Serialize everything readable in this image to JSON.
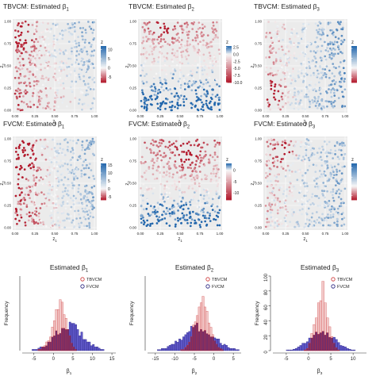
{
  "chart_data": [
    {
      "type": "scatter",
      "panel": "TBVCM-b1",
      "title_main": "TBVCM: Estimated ",
      "title_sym": "β",
      "title_sub": "1",
      "xlabel_main": "z",
      "xlabel_sub": "1",
      "ylabel_main": "z",
      "ylabel_sub": "2",
      "x_ticks": [
        "0.00",
        "0.25",
        "0.50",
        "0.75",
        "1.00"
      ],
      "y_ticks": [
        "0.00",
        "0.25",
        "0.50",
        "0.75",
        "1.00"
      ],
      "xlim": [
        0,
        1
      ],
      "ylim": [
        0,
        1
      ],
      "grid": true,
      "legend_title": "z",
      "legend_placement": "right",
      "colorbar_ticks": [
        {
          "label": "10",
          "value": 10
        },
        {
          "label": "5",
          "value": 5
        },
        {
          "label": "0",
          "value": 0
        },
        {
          "label": "-5",
          "value": -5
        }
      ],
      "color_range": [
        -8,
        12
      ],
      "colors": {
        "low": "#b2182b",
        "mid": "#f7f7f7",
        "high": "#2166ac"
      },
      "field": {
        "base": 0,
        "xcoef": 5,
        "ycoef": 2,
        "hot": [
          0.1,
          0.85,
          -8,
          0.12
        ],
        "noise": 5,
        "seed": 11
      }
    },
    {
      "type": "scatter",
      "panel": "TBVCM-b2",
      "title_main": "TBVCM: Estimated ",
      "title_sym": "β",
      "title_sub": "2",
      "xlabel_main": "z",
      "xlabel_sub": "1",
      "ylabel_main": "z",
      "ylabel_sub": "2",
      "x_ticks": [
        "0.00",
        "0.25",
        "0.50",
        "0.75",
        "1.00"
      ],
      "y_ticks": [
        "0.00",
        "0.25",
        "0.50",
        "0.75",
        "1.00"
      ],
      "xlim": [
        0,
        1
      ],
      "ylim": [
        0,
        1
      ],
      "grid": true,
      "legend_title": "z",
      "legend_placement": "right",
      "colorbar_ticks": [
        {
          "label": "2.5",
          "value": 2.5
        },
        {
          "label": "0.0",
          "value": 0
        },
        {
          "label": "-2.5",
          "value": -2.5
        },
        {
          "label": "-5.0",
          "value": -5
        },
        {
          "label": "-7.5",
          "value": -7.5
        },
        {
          "label": "-10.0",
          "value": -10
        }
      ],
      "color_range": [
        -10,
        3
      ],
      "colors": {
        "low": "#b2182b",
        "mid": "#f7f7f7",
        "high": "#2166ac"
      },
      "field": {
        "base": -0.5,
        "xcoef": 0,
        "ycoef": -5,
        "hot": [
          0.3,
          0.9,
          -6,
          0.1
        ],
        "noise": 3,
        "seed": 23
      }
    },
    {
      "type": "scatter",
      "panel": "TBVCM-b3",
      "title_main": "TBVCM: Estimated ",
      "title_sym": "β",
      "title_sub": "3",
      "xlabel_main": "z",
      "xlabel_sub": "1",
      "ylabel_main": "z",
      "ylabel_sub": "2",
      "x_ticks": [
        "0.00",
        "0.25",
        "0.50",
        "0.75",
        "1.00"
      ],
      "y_ticks": [
        "0.00",
        "0.25",
        "0.50",
        "0.75",
        "1.00"
      ],
      "xlim": [
        0,
        1
      ],
      "ylim": [
        0,
        1
      ],
      "grid": true,
      "legend_title": "z",
      "legend_placement": "right",
      "colorbar_ticks": [
        {
          "label": "",
          "value": 8
        },
        {
          "label": "",
          "value": 4
        },
        {
          "label": "",
          "value": 0
        },
        {
          "label": "",
          "value": -4
        }
      ],
      "color_range": [
        -6,
        9
      ],
      "colors": {
        "low": "#b2182b",
        "mid": "#f7f7f7",
        "high": "#2166ac"
      },
      "field": {
        "base": 2,
        "xcoef": 4,
        "ycoef": 0,
        "hot": [
          0.1,
          0.2,
          -8,
          0.1
        ],
        "noise": 4,
        "seed": 37
      }
    },
    {
      "type": "scatter",
      "panel": "FVCM-b1",
      "title_main": "FVCM: Estimated ",
      "title_sym": "β",
      "title_sub": "1",
      "xlabel_main": "z",
      "xlabel_sub": "1",
      "ylabel_main": "z",
      "ylabel_sub": "2",
      "x_ticks": [
        "0.00",
        "0.25",
        "0.50",
        "0.75",
        "1.00"
      ],
      "y_ticks": [
        "0.00",
        "0.25",
        "0.50",
        "0.75",
        "1.00"
      ],
      "xlim": [
        0,
        1
      ],
      "ylim": [
        0,
        1
      ],
      "grid": true,
      "legend_title": "z",
      "legend_placement": "right",
      "colorbar_ticks": [
        {
          "label": "15",
          "value": 15
        },
        {
          "label": "10",
          "value": 10
        },
        {
          "label": "5",
          "value": 5
        },
        {
          "label": "0",
          "value": 0
        },
        {
          "label": "-5",
          "value": -5
        }
      ],
      "color_range": [
        -7,
        16
      ],
      "colors": {
        "low": "#b2182b",
        "mid": "#f7f7f7",
        "high": "#2166ac"
      },
      "field": {
        "base": 1,
        "xcoef": 7,
        "ycoef": 1,
        "hot": [
          0.1,
          0.8,
          -9,
          0.12
        ],
        "noise": 6,
        "seed": 41
      }
    },
    {
      "type": "scatter",
      "panel": "FVCM-b2",
      "title_main": "FVCM: Estimated ",
      "title_sym": "β",
      "title_sub": "2",
      "xlabel_main": "z",
      "xlabel_sub": "1",
      "ylabel_main": "z",
      "ylabel_sub": "2",
      "x_ticks": [
        "0.00",
        "0.25",
        "0.50",
        "0.75",
        "1.00"
      ],
      "y_ticks": [
        "0.00",
        "0.25",
        "0.50",
        "0.75",
        "1.00"
      ],
      "xlim": [
        0,
        1
      ],
      "ylim": [
        0,
        1
      ],
      "grid": true,
      "legend_title": "z",
      "legend_placement": "right",
      "colorbar_ticks": [
        {
          "label": "0",
          "value": 0
        },
        {
          "label": "-5",
          "value": -5
        },
        {
          "label": "-10",
          "value": -10
        }
      ],
      "color_range": [
        -13,
        3
      ],
      "colors": {
        "low": "#b2182b",
        "mid": "#f7f7f7",
        "high": "#2166ac"
      },
      "field": {
        "base": -2,
        "xcoef": 0,
        "ycoef": -7,
        "hot": [
          0.6,
          0.8,
          -8,
          0.12
        ],
        "noise": 4,
        "seed": 53
      }
    },
    {
      "type": "scatter",
      "panel": "FVCM-b3",
      "title_main": "FVCM: Estimated ",
      "title_sym": "β",
      "title_sub": "3",
      "xlabel_main": "z",
      "xlabel_sub": "1",
      "ylabel_main": "z",
      "ylabel_sub": "2",
      "x_ticks": [
        "0.00",
        "0.25",
        "0.50",
        "0.75",
        "1.00"
      ],
      "y_ticks": [
        "0.00",
        "0.25",
        "0.50",
        "0.75",
        "1.00"
      ],
      "xlim": [
        0,
        1
      ],
      "ylim": [
        0,
        1
      ],
      "grid": true,
      "legend_title": "z",
      "legend_placement": "right",
      "colorbar_ticks": [
        {
          "label": "",
          "value": 8
        },
        {
          "label": "",
          "value": 4
        },
        {
          "label": "",
          "value": 0
        },
        {
          "label": "",
          "value": -4
        }
      ],
      "color_range": [
        -6,
        10
      ],
      "colors": {
        "low": "#b2182b",
        "mid": "#f7f7f7",
        "high": "#2166ac"
      },
      "field": {
        "base": 2,
        "xcoef": 3,
        "ycoef": 0,
        "hot": [
          0.2,
          0.85,
          -9,
          0.1
        ],
        "noise": 5,
        "seed": 67
      }
    },
    {
      "type": "bar",
      "panel": "hist-b1",
      "title_main": "Estimated ",
      "title_sym": "β",
      "title_sub": "1",
      "xlabel_main": "β",
      "xlabel_sub": "1",
      "ylabel": "Frequency",
      "x_ticks": [
        {
          "label": "-5",
          "value": -5
        },
        {
          "label": "0",
          "value": 0
        },
        {
          "label": "5",
          "value": 5
        },
        {
          "label": "10",
          "value": 10
        },
        {
          "label": "15",
          "value": 15
        }
      ],
      "y_ticks": [],
      "xlim": [
        -8,
        16
      ],
      "ylim": [
        0,
        60
      ],
      "legend_placement": "top-right",
      "legend": [
        {
          "label": "TBVCM",
          "series": "tbvcm"
        },
        {
          "label": "FVCM",
          "series": "fvcm"
        }
      ],
      "colors": {
        "tbvcm": "#f0c0c0",
        "tbvcm_edge": "#cc3333",
        "fvcm": "#5e57c7",
        "fvcm_edge": "#1f1a7a",
        "overlap": "#6a2060"
      },
      "bin_start": -8,
      "bin_width": 0.5,
      "series": [
        {
          "name": "TBVCM",
          "dist": [
            [
              2,
              1.5,
              38
            ],
            [
              -1,
              1.4,
              6
            ]
          ]
        },
        {
          "name": "FVCM",
          "dist": [
            [
              4,
              3.5,
              20
            ]
          ]
        }
      ]
    },
    {
      "type": "bar",
      "panel": "hist-b2",
      "title_main": "Estimated ",
      "title_sym": "β",
      "title_sub": "2",
      "xlabel_main": "β",
      "xlabel_sub": "2",
      "ylabel": "Frequency",
      "x_ticks": [
        {
          "label": "-15",
          "value": -15
        },
        {
          "label": "-10",
          "value": -10
        },
        {
          "label": "-5",
          "value": -5
        },
        {
          "label": "0",
          "value": 0
        },
        {
          "label": "5",
          "value": 5
        }
      ],
      "y_ticks": [],
      "xlim": [
        -17,
        7
      ],
      "ylim": [
        0,
        70
      ],
      "legend_placement": "top-right",
      "legend": [
        {
          "label": "TBVCM",
          "series": "tbvcm"
        },
        {
          "label": "FVCM",
          "series": "fvcm"
        }
      ],
      "colors": {
        "tbvcm": "#f0c0c0",
        "tbvcm_edge": "#cc3333",
        "fvcm": "#5e57c7",
        "fvcm_edge": "#1f1a7a",
        "overlap": "#6a2060"
      },
      "bin_start": -17,
      "bin_width": 0.5,
      "series": [
        {
          "name": "TBVCM",
          "dist": [
            [
              -3,
              1.8,
              48
            ]
          ]
        },
        {
          "name": "FVCM",
          "dist": [
            [
              -4,
              4,
              22
            ]
          ]
        }
      ]
    },
    {
      "type": "bar",
      "panel": "hist-b3",
      "title_main": "Estimated ",
      "title_sym": "β",
      "title_sub": "3",
      "xlabel_main": "β",
      "xlabel_sub": "3",
      "ylabel": "Frequency",
      "x_ticks": [
        {
          "label": "-5",
          "value": -5
        },
        {
          "label": "0",
          "value": 0
        },
        {
          "label": "5",
          "value": 5
        },
        {
          "label": "10",
          "value": 10
        }
      ],
      "y_ticks": [
        {
          "label": "0",
          "value": 0
        },
        {
          "label": "20",
          "value": 20
        },
        {
          "label": "40",
          "value": 40
        },
        {
          "label": "60",
          "value": 60
        },
        {
          "label": "80",
          "value": 80
        },
        {
          "label": "100",
          "value": 100
        }
      ],
      "xlim": [
        -8,
        13
      ],
      "ylim": [
        0,
        100
      ],
      "legend_placement": "top-right",
      "legend": [
        {
          "label": "TBVCM",
          "series": "tbvcm"
        },
        {
          "label": "FVCM",
          "series": "fvcm"
        }
      ],
      "colors": {
        "tbvcm": "#f0c0c0",
        "tbvcm_edge": "#cc3333",
        "fvcm": "#5e57c7",
        "fvcm_edge": "#1f1a7a",
        "overlap": "#6a2060"
      },
      "bin_start": -8,
      "bin_width": 0.5,
      "series": [
        {
          "name": "TBVCM",
          "dist": [
            [
              3,
              1.3,
              85
            ]
          ]
        },
        {
          "name": "FVCM",
          "dist": [
            [
              3,
              2.8,
              26
            ]
          ]
        }
      ]
    }
  ]
}
